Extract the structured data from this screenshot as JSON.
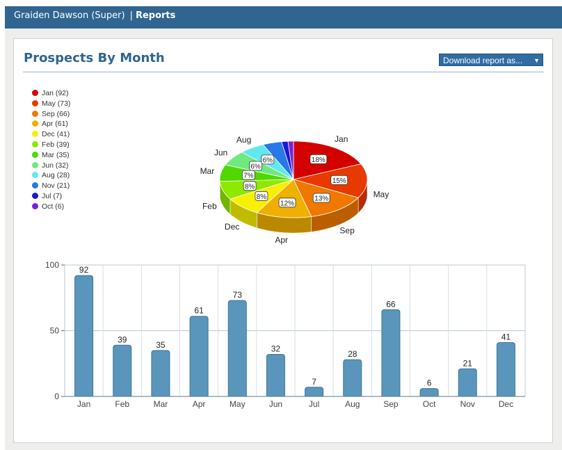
{
  "header": {
    "user": "Graiden Dawson (Super)",
    "separator": "|",
    "section": "Reports"
  },
  "page": {
    "title": "Prospects By Month",
    "download_label": "Download report as...",
    "download_arrow": "▼"
  },
  "legend": [
    {
      "label": "Jan (92)",
      "color": "#d40000"
    },
    {
      "label": "May (73)",
      "color": "#e83a00"
    },
    {
      "label": "Sep (66)",
      "color": "#f07800"
    },
    {
      "label": "Apr (61)",
      "color": "#f0b000"
    },
    {
      "label": "Dec (41)",
      "color": "#f8f000"
    },
    {
      "label": "Feb (39)",
      "color": "#90e800"
    },
    {
      "label": "Mar (35)",
      "color": "#50d800"
    },
    {
      "label": "Jun (32)",
      "color": "#70e880"
    },
    {
      "label": "Aug (28)",
      "color": "#60e8f0"
    },
    {
      "label": "Nov (21)",
      "color": "#2878e8"
    },
    {
      "label": "Jul (7)",
      "color": "#1818d8"
    },
    {
      "label": "Oct (6)",
      "color": "#7820e0"
    }
  ],
  "chart_data": [
    {
      "type": "pie",
      "slices": [
        {
          "label": "Jan",
          "value": 92,
          "percent": "18%",
          "color": "#d40000"
        },
        {
          "label": "May",
          "value": 73,
          "percent": "15%",
          "color": "#e83a00"
        },
        {
          "label": "Sep",
          "value": 66,
          "percent": "13%",
          "color": "#f07800"
        },
        {
          "label": "Apr",
          "value": 61,
          "percent": "12%",
          "color": "#f0b000"
        },
        {
          "label": "Dec",
          "value": 41,
          "percent": "8%",
          "color": "#f8f000"
        },
        {
          "label": "Feb",
          "value": 39,
          "percent": "8%",
          "color": "#90e800"
        },
        {
          "label": "Mar",
          "value": 35,
          "percent": "7%",
          "color": "#50d800"
        },
        {
          "label": "Jun",
          "value": 32,
          "percent": "6%",
          "color": "#70e880"
        },
        {
          "label": "Aug",
          "value": 28,
          "percent": "6%",
          "color": "#60e8f0"
        },
        {
          "label": "Nov",
          "value": 21,
          "percent": "",
          "color": "#2878e8"
        },
        {
          "label": "Jul",
          "value": 7,
          "percent": "",
          "color": "#1818d8"
        },
        {
          "label": "Oct",
          "value": 6,
          "percent": "",
          "color": "#7820e0"
        }
      ]
    },
    {
      "type": "bar",
      "categories": [
        "Jan",
        "Feb",
        "Mar",
        "Apr",
        "May",
        "Jun",
        "Jul",
        "Aug",
        "Sep",
        "Oct",
        "Nov",
        "Dec"
      ],
      "values": [
        92,
        39,
        35,
        61,
        73,
        32,
        7,
        28,
        66,
        6,
        21,
        41
      ],
      "ylim": [
        0,
        100
      ],
      "yticks": [
        "0",
        "50",
        "100"
      ],
      "bar_color": "#5a96bc",
      "grid": true
    }
  ]
}
